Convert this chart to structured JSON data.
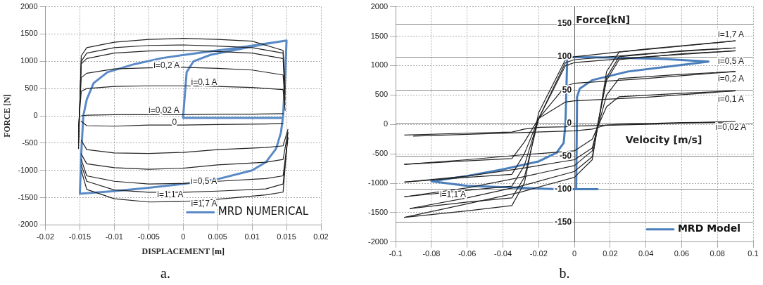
{
  "chart_data": [
    {
      "type": "line",
      "xlabel": "DISPLACEMENT [m]",
      "ylabel": "FORCE [N]",
      "xlim": [
        -0.02,
        0.02
      ],
      "xticks": [
        -0.02,
        -0.015,
        -0.01,
        -0.005,
        0,
        0.005,
        0.01,
        0.015,
        0.02
      ],
      "ylim": [
        -2000,
        2000
      ],
      "yticks": [
        -2000,
        -1500,
        -1000,
        -500,
        0,
        500,
        1000,
        1500,
        2000
      ],
      "grid": true,
      "legend": "bottom right",
      "series": [
        {
          "color": "#222222",
          "x": [
            -0.0152,
            -0.0148,
            -0.014,
            -0.01,
            -0.005,
            0,
            0.005,
            0.01,
            0.0145,
            0.0148
          ],
          "values": [
            -600,
            1100,
            1250,
            1350,
            1400,
            1420,
            1400,
            1370,
            1200,
            500
          ]
        },
        {
          "color": "#222222",
          "x": [
            -0.0148,
            -0.014,
            -0.01,
            -0.005,
            0,
            0.005,
            0.012,
            0.0145,
            0.0152
          ],
          "values": [
            -1000,
            -1350,
            -1520,
            -1580,
            -1570,
            -1530,
            -1450,
            -1400,
            -300
          ]
        },
        {
          "color": "#222222",
          "x": [
            -0.0152,
            -0.0148,
            -0.014,
            -0.01,
            -0.005,
            0,
            0.005,
            0.01,
            0.0145,
            0.0148
          ],
          "values": [
            -500,
            1000,
            1150,
            1250,
            1290,
            1300,
            1280,
            1250,
            1150,
            400
          ]
        },
        {
          "color": "#222222",
          "x": [
            -0.0148,
            -0.014,
            -0.01,
            -0.005,
            0,
            0.005,
            0.012,
            0.0145,
            0.0152
          ],
          "values": [
            -900,
            -1200,
            -1360,
            -1400,
            -1400,
            -1380,
            -1340,
            -1250,
            -400
          ]
        },
        {
          "color": "#222222",
          "x": [
            -0.0152,
            -0.0148,
            -0.014,
            -0.01,
            -0.005,
            0,
            0.005,
            0.01,
            0.0145,
            0.0148
          ],
          "values": [
            -400,
            950,
            1050,
            1150,
            1190,
            1200,
            1180,
            1150,
            1050,
            300
          ]
        },
        {
          "color": "#222222",
          "x": [
            -0.0148,
            -0.014,
            -0.01,
            -0.005,
            0,
            0.005,
            0.012,
            0.0145,
            0.0152
          ],
          "values": [
            -800,
            -1100,
            -1200,
            -1250,
            -1240,
            -1200,
            -1150,
            -1100,
            -400
          ]
        },
        {
          "color": "#222222",
          "x": [
            -0.0152,
            -0.0148,
            -0.014,
            -0.01,
            -0.005,
            0,
            0.005,
            0.01,
            0.0145,
            0.0148
          ],
          "values": [
            -300,
            700,
            780,
            860,
            880,
            890,
            870,
            840,
            750,
            200
          ]
        },
        {
          "color": "#222222",
          "x": [
            -0.0148,
            -0.014,
            -0.01,
            -0.005,
            0,
            0.005,
            0.012,
            0.0145,
            0.0152
          ],
          "values": [
            -700,
            -880,
            -950,
            -980,
            -960,
            -900,
            -850,
            -800,
            -300
          ]
        },
        {
          "color": "#222222",
          "x": [
            -0.0152,
            -0.0148,
            -0.014,
            -0.01,
            -0.005,
            0,
            0.005,
            0.01,
            0.0145,
            0.0148
          ],
          "values": [
            -200,
            450,
            500,
            540,
            550,
            550,
            540,
            520,
            480,
            100
          ]
        },
        {
          "color": "#222222",
          "x": [
            -0.0148,
            -0.014,
            -0.01,
            -0.005,
            0,
            0.005,
            0.012,
            0.0145,
            0.0152
          ],
          "values": [
            -450,
            -620,
            -680,
            -690,
            -670,
            -620,
            -580,
            -550,
            -250
          ]
        },
        {
          "color": "#222222",
          "x": [
            -0.0148,
            -0.014,
            -0.01,
            -0.005,
            0,
            0.005,
            0.01,
            0.0145
          ],
          "values": [
            0,
            10,
            20,
            20,
            20,
            30,
            30,
            40
          ]
        },
        {
          "color": "#222222",
          "x": [
            -0.0148,
            -0.014,
            -0.01,
            -0.005,
            0,
            0.005,
            0.012,
            0.0145
          ],
          "values": [
            -100,
            -180,
            -190,
            -170,
            -170,
            -160,
            -150,
            -140
          ]
        },
        {
          "name": "MRD NUMERICAL",
          "color": "#5a8ac6",
          "x": [
            0.0143,
            0,
            0,
            0.0005,
            0.0015,
            0.004,
            0.008,
            0.012,
            0.015,
            0.0148,
            0.0145,
            0.0142,
            0.0135,
            0.012,
            0.01,
            0.005,
            0,
            -0.005,
            -0.01,
            -0.015,
            -0.0148,
            -0.0145,
            -0.014,
            -0.013,
            -0.011,
            -0.007,
            -0.003,
            0.002,
            0.008,
            0.015
          ],
          "values": [
            -40,
            -40,
            0,
            800,
            1000,
            1120,
            1220,
            1320,
            1380,
            700,
            0,
            -300,
            -600,
            -850,
            -1000,
            -1160,
            -1250,
            -1320,
            -1380,
            -1430,
            -700,
            0,
            300,
            600,
            800,
            950,
            1060,
            1150,
            1250,
            1380
          ]
        }
      ],
      "annotations": [
        "i=0,2 A",
        "i=0,1 A",
        "i=0,02 A",
        "0",
        "i=0,5 A",
        "i=1,1 A",
        "i=1,7 A",
        "a."
      ]
    },
    {
      "type": "line",
      "xlabel": "Velocity [m/s]",
      "y2label": "Force[kN]",
      "xlim": [
        -0.1,
        0.1
      ],
      "xticks": [
        -0.1,
        -0.08,
        -0.06,
        -0.04,
        -0.02,
        0,
        0.02,
        0.04,
        0.06,
        0.08,
        0.1
      ],
      "ylim": [
        -2000,
        2000
      ],
      "yticks": [
        -2000,
        -1500,
        -1000,
        -500,
        0,
        500,
        1000,
        1500,
        2000
      ],
      "y2lim": [
        -180,
        176
      ],
      "y2ticks": [
        -150,
        -100,
        -50,
        0,
        50,
        100,
        150
      ],
      "grid": true,
      "legend": "bottom right",
      "series": [
        {
          "color": "#222222",
          "x": [
            -0.095,
            -0.06,
            -0.035,
            -0.028,
            -0.02,
            -0.005,
            0,
            0.04,
            0.09
          ],
          "values": [
            -1580,
            -1470,
            -1380,
            -1000,
            200,
            1100,
            1150,
            1280,
            1420
          ]
        },
        {
          "color": "#222222",
          "x": [
            -0.095,
            -0.06,
            -0.03,
            0,
            0.01,
            0.018,
            0.025,
            0.06,
            0.09
          ],
          "values": [
            -1580,
            -1350,
            -1150,
            -900,
            -600,
            900,
            1230,
            1330,
            1420
          ]
        },
        {
          "color": "#222222",
          "x": [
            -0.092,
            -0.06,
            -0.035,
            -0.028,
            -0.02,
            -0.005,
            0,
            0.04,
            0.09
          ],
          "values": [
            -1430,
            -1320,
            -1250,
            -900,
            100,
            1050,
            1100,
            1200,
            1300
          ]
        },
        {
          "color": "#222222",
          "x": [
            -0.092,
            -0.06,
            -0.03,
            0,
            0.01,
            0.018,
            0.025,
            0.06,
            0.09
          ],
          "values": [
            -1430,
            -1250,
            -1050,
            -800,
            -550,
            800,
            1150,
            1250,
            1300
          ]
        },
        {
          "color": "#222222",
          "x": [
            -0.095,
            -0.06,
            -0.035,
            -0.028,
            -0.02,
            -0.005,
            0,
            0.04,
            0.09
          ],
          "values": [
            -1230,
            -1120,
            -1050,
            -700,
            100,
            1000,
            1050,
            1150,
            1250
          ]
        },
        {
          "color": "#222222",
          "x": [
            -0.095,
            -0.06,
            -0.03,
            0,
            0.01,
            0.018,
            0.025,
            0.06,
            0.09
          ],
          "values": [
            -1230,
            -1080,
            -900,
            -700,
            -450,
            750,
            1100,
            1200,
            1250
          ]
        },
        {
          "color": "#222222",
          "x": [
            -0.095,
            -0.06,
            -0.035,
            -0.028,
            -0.02,
            -0.005,
            0,
            0.04,
            0.09
          ],
          "values": [
            -980,
            -900,
            -850,
            -500,
            100,
            650,
            700,
            780,
            900
          ]
        },
        {
          "color": "#222222",
          "x": [
            -0.095,
            -0.06,
            -0.03,
            0,
            0.01,
            0.018,
            0.025,
            0.06,
            0.09
          ],
          "values": [
            -980,
            -880,
            -750,
            -600,
            -400,
            500,
            780,
            850,
            900
          ]
        },
        {
          "color": "#222222",
          "x": [
            -0.095,
            -0.06,
            -0.035,
            -0.028,
            -0.02,
            -0.005,
            0,
            0.04,
            0.09
          ],
          "values": [
            -680,
            -620,
            -580,
            -300,
            100,
            380,
            400,
            460,
            570
          ]
        },
        {
          "color": "#222222",
          "x": [
            -0.095,
            -0.06,
            -0.03,
            0,
            0.01,
            0.018,
            0.025,
            0.06,
            0.09
          ],
          "values": [
            -680,
            -600,
            -520,
            -450,
            -250,
            300,
            470,
            530,
            570
          ]
        },
        {
          "color": "#222222",
          "x": [
            -0.095,
            -0.06,
            -0.035,
            -0.028,
            -0.02,
            -0.005,
            0,
            0.04,
            0.09
          ],
          "values": [
            -180,
            -150,
            -130,
            -80,
            -50,
            -40,
            -30,
            0,
            50
          ]
        },
        {
          "color": "#222222",
          "x": [
            -0.09,
            -0.06,
            -0.03,
            0,
            0.01,
            0.018,
            0.025,
            0.06,
            0.085
          ],
          "values": [
            -200,
            -170,
            -140,
            -110,
            -80,
            -10,
            0,
            30,
            40
          ]
        },
        {
          "name": "MRD Model",
          "color": "#4a7ebb",
          "axis": "y2",
          "x": [
            0.013,
            0.001,
            0.0015,
            0.003,
            0.01,
            0.03,
            0.06,
            0.075,
            0.05,
            0.02,
            -0.004,
            -0.0045,
            -0.005,
            -0.006,
            -0.01,
            -0.02,
            -0.04,
            -0.06,
            -0.08,
            -0.06,
            -0.03,
            -0.01,
            0.001
          ],
          "values": [
            -100,
            -100,
            40,
            52,
            65,
            78,
            88,
            93,
            97,
            99,
            100,
            50,
            0,
            -30,
            -45,
            -58,
            -70,
            -80,
            -88,
            -95,
            -98,
            -100,
            -100
          ]
        }
      ],
      "annotations": [
        "i=1,7 A",
        "i=0,5 A",
        "i=0,2 A",
        "i=0,1 A",
        "i=0,02 A",
        "i=1,1 A",
        "b."
      ]
    }
  ]
}
